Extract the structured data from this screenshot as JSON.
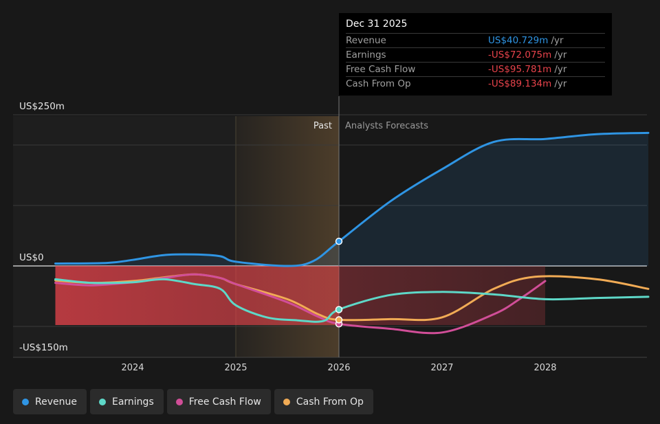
{
  "chart_data": {
    "type": "line",
    "title": "",
    "xlabel": "",
    "ylabel": "",
    "y_axis_labels": [
      {
        "value": 250,
        "text": "US$250m"
      },
      {
        "value": 0,
        "text": "US$0"
      },
      {
        "value": -150,
        "text": "-US$150m"
      }
    ],
    "ylim": [
      -150,
      250
    ],
    "xlim": [
      2023.1,
      2029.0
    ],
    "x_ticks": [
      {
        "value": 2024,
        "text": "2024"
      },
      {
        "value": 2025,
        "text": "2025"
      },
      {
        "value": 2026,
        "text": "2026"
      },
      {
        "value": 2027,
        "text": "2027"
      },
      {
        "value": 2028,
        "text": "2028"
      }
    ],
    "gridlines": [
      250,
      200,
      100,
      -100
    ],
    "divider_x": 2026.0,
    "past_band_start": 2025.0,
    "past_label": "Past",
    "forecast_label": "Analysts Forecasts",
    "series": [
      {
        "name": "Revenue",
        "color": "#2f95e4",
        "points": [
          [
            2023.25,
            4
          ],
          [
            2023.75,
            5
          ],
          [
            2024.0,
            10
          ],
          [
            2024.3,
            18
          ],
          [
            2024.6,
            19
          ],
          [
            2024.85,
            16
          ],
          [
            2025.0,
            7
          ],
          [
            2025.5,
            0
          ],
          [
            2025.75,
            8
          ],
          [
            2026.0,
            40.7
          ],
          [
            2026.5,
            107
          ],
          [
            2027.0,
            160
          ],
          [
            2027.5,
            205
          ],
          [
            2028.0,
            210
          ],
          [
            2028.5,
            218
          ],
          [
            2029.0,
            220
          ]
        ]
      },
      {
        "name": "Earnings",
        "color": "#5ed8c8",
        "points": [
          [
            2023.25,
            -22
          ],
          [
            2023.6,
            -28
          ],
          [
            2024.0,
            -27
          ],
          [
            2024.3,
            -22
          ],
          [
            2024.6,
            -30
          ],
          [
            2024.85,
            -38
          ],
          [
            2025.0,
            -65
          ],
          [
            2025.3,
            -85
          ],
          [
            2025.6,
            -90
          ],
          [
            2025.85,
            -91
          ],
          [
            2026.0,
            -72.1
          ],
          [
            2026.5,
            -48
          ],
          [
            2027.0,
            -43
          ],
          [
            2027.5,
            -47
          ],
          [
            2028.0,
            -55
          ],
          [
            2028.5,
            -53
          ],
          [
            2029.0,
            -51
          ]
        ]
      },
      {
        "name": "Free Cash Flow",
        "color": "#d14e98",
        "points": [
          [
            2023.25,
            -28
          ],
          [
            2023.6,
            -32
          ],
          [
            2024.0,
            -27
          ],
          [
            2024.3,
            -20
          ],
          [
            2024.6,
            -14
          ],
          [
            2024.85,
            -20
          ],
          [
            2025.0,
            -30
          ],
          [
            2025.5,
            -60
          ],
          [
            2025.8,
            -84
          ],
          [
            2026.0,
            -95.8
          ],
          [
            2026.5,
            -104
          ],
          [
            2027.0,
            -110
          ],
          [
            2027.5,
            -80
          ],
          [
            2027.75,
            -55
          ],
          [
            2028.0,
            -25
          ]
        ]
      },
      {
        "name": "Cash From Op",
        "color": "#f1ab55",
        "points": [
          [
            2023.25,
            -24
          ],
          [
            2023.6,
            -28
          ],
          [
            2024.0,
            -25
          ],
          [
            2024.3,
            -19
          ],
          [
            2024.6,
            -14
          ],
          [
            2024.85,
            -20
          ],
          [
            2025.0,
            -30
          ],
          [
            2025.5,
            -55
          ],
          [
            2025.8,
            -80
          ],
          [
            2026.0,
            -89.1
          ],
          [
            2026.5,
            -88
          ],
          [
            2027.0,
            -85
          ],
          [
            2027.5,
            -38
          ],
          [
            2027.9,
            -18
          ],
          [
            2028.5,
            -22
          ],
          [
            2029.0,
            -38
          ]
        ]
      }
    ],
    "highlight_x": 2026.0
  },
  "tooltip": {
    "date": "Dec 31 2025",
    "unit": "/yr",
    "rows": [
      {
        "label": "Revenue",
        "value": "US$40.729m",
        "tone": "blue"
      },
      {
        "label": "Earnings",
        "value": "-US$72.075m",
        "tone": "red"
      },
      {
        "label": "Free Cash Flow",
        "value": "-US$95.781m",
        "tone": "red"
      },
      {
        "label": "Cash From Op",
        "value": "-US$89.134m",
        "tone": "red"
      }
    ]
  },
  "legend": {
    "items": [
      {
        "label": "Revenue",
        "color": "#2f95e4"
      },
      {
        "label": "Earnings",
        "color": "#5ed8c8"
      },
      {
        "label": "Free Cash Flow",
        "color": "#d14e98"
      },
      {
        "label": "Cash From Op",
        "color": "#f1ab55"
      }
    ]
  }
}
